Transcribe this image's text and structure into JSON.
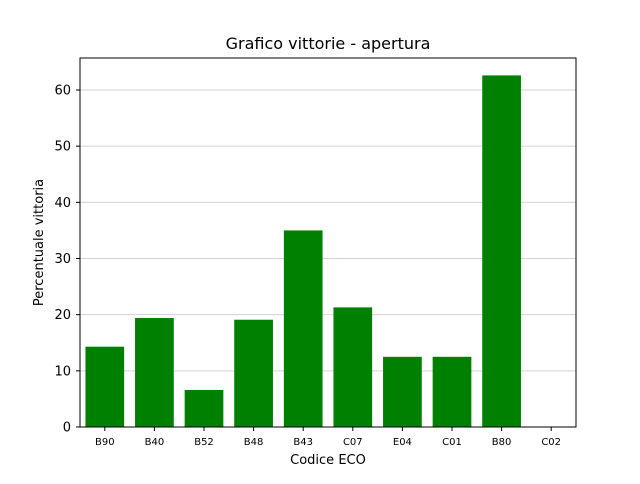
{
  "chart_data": {
    "type": "bar",
    "title": "Grafico vittorie - apertura",
    "xlabel": "Codice ECO",
    "ylabel": "Percentuale vittoria",
    "categories": [
      "B90",
      "B40",
      "B52",
      "B48",
      "B43",
      "C07",
      "E04",
      "C01",
      "B80",
      "C02"
    ],
    "values": [
      14.3,
      19.4,
      6.6,
      19.1,
      35.0,
      21.3,
      12.5,
      12.5,
      62.6,
      0
    ],
    "ylim": [
      0,
      65.7
    ],
    "yticks": [
      0,
      10,
      20,
      30,
      40,
      50,
      60
    ],
    "grid": "horizontal",
    "bar_color": "#008000"
  }
}
